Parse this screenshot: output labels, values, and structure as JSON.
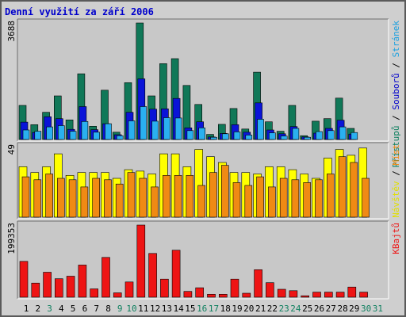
{
  "title": "Denní využití za září 2006",
  "chart_data": [
    {
      "type": "bar",
      "panel": "top",
      "max_label": "3688",
      "ymax": 3688,
      "categories": [
        "1",
        "2",
        "3",
        "4",
        "5",
        "6",
        "7",
        "8",
        "9",
        "10",
        "11",
        "12",
        "13",
        "14",
        "15",
        "16",
        "17",
        "18",
        "19",
        "20",
        "21",
        "22",
        "23",
        "24",
        "25",
        "26",
        "27",
        "28",
        "29",
        "30",
        "31"
      ],
      "series": [
        {
          "name": "Přístupů",
          "color": "#107858",
          "values": [
            1080,
            470,
            860,
            1380,
            620,
            2080,
            420,
            1560,
            230,
            1800,
            3688,
            1380,
            2400,
            2560,
            1710,
            1110,
            160,
            480,
            980,
            330,
            2130,
            560,
            260,
            1080,
            120,
            580,
            660,
            1310,
            350,
            0,
            0
          ]
        },
        {
          "name": "Souborů",
          "color": "#0a14d8",
          "values": [
            550,
            220,
            720,
            660,
            320,
            1040,
            310,
            500,
            150,
            860,
            1920,
            960,
            970,
            1300,
            370,
            560,
            80,
            190,
            470,
            230,
            1160,
            300,
            180,
            410,
            80,
            200,
            350,
            610,
            170,
            0,
            0
          ]
        },
        {
          "name": "Stránek",
          "color": "#2ab0f0",
          "values": [
            300,
            260,
            400,
            440,
            260,
            570,
            230,
            500,
            120,
            590,
            1040,
            580,
            690,
            680,
            280,
            370,
            70,
            180,
            240,
            140,
            640,
            210,
            110,
            350,
            70,
            250,
            280,
            400,
            220,
            0,
            0
          ]
        }
      ]
    },
    {
      "type": "bar",
      "panel": "middle",
      "max_label": "49",
      "ymax": 49,
      "categories": [
        "1",
        "2",
        "3",
        "4",
        "5",
        "6",
        "7",
        "8",
        "9",
        "10",
        "11",
        "12",
        "13",
        "14",
        "15",
        "16",
        "17",
        "18",
        "19",
        "20",
        "21",
        "22",
        "23",
        "24",
        "25",
        "26",
        "27",
        "28",
        "29",
        "30",
        "31"
      ],
      "series": [
        {
          "name": "Návštěv",
          "color": "#ffff00",
          "values": [
            35,
            31,
            35,
            44,
            29,
            31,
            31,
            31,
            27,
            33,
            32,
            30,
            44,
            44,
            35,
            47,
            42,
            38,
            31,
            31,
            30,
            35,
            35,
            33,
            30,
            27,
            41,
            47,
            43,
            48,
            0
          ]
        },
        {
          "name": "Míst",
          "color": "#f08a14",
          "values": [
            28,
            26,
            30,
            27,
            26,
            21,
            27,
            26,
            23,
            31,
            27,
            21,
            29,
            29,
            29,
            22,
            31,
            36,
            24,
            22,
            28,
            21,
            27,
            26,
            24,
            26,
            30,
            42,
            38,
            27,
            0
          ]
        }
      ]
    },
    {
      "type": "bar",
      "panel": "bottom",
      "max_label": "199353",
      "ymax": 199353,
      "categories": [
        "1",
        "2",
        "3",
        "4",
        "5",
        "6",
        "7",
        "8",
        "9",
        "10",
        "11",
        "12",
        "13",
        "14",
        "15",
        "16",
        "17",
        "18",
        "19",
        "20",
        "21",
        "22",
        "23",
        "24",
        "25",
        "26",
        "27",
        "28",
        "29",
        "30",
        "31"
      ],
      "series": [
        {
          "name": "KBajtů",
          "color": "#ee1414",
          "values": [
            99000,
            39000,
            69000,
            51000,
            58000,
            89000,
            23000,
            110000,
            12000,
            42000,
            199353,
            121000,
            50000,
            130000,
            16000,
            26000,
            8000,
            8000,
            50000,
            11000,
            76000,
            40000,
            22000,
            18000,
            4000,
            14000,
            14000,
            14000,
            28000,
            14000,
            0
          ]
        }
      ]
    }
  ],
  "x_labels": [
    "1",
    "2",
    "3",
    "4",
    "5",
    "6",
    "7",
    "8",
    "9",
    "10",
    "11",
    "12",
    "13",
    "14",
    "15",
    "16",
    "17",
    "18",
    "19",
    "20",
    "21",
    "22",
    "23",
    "24",
    "25",
    "26",
    "27",
    "28",
    "29",
    "30",
    "31"
  ],
  "x_label_colors": [
    "#000000",
    "#000000",
    "#108060",
    "#000000",
    "#000000",
    "#000000",
    "#000000",
    "#000000",
    "#108060",
    "#108060",
    "#000000",
    "#000000",
    "#000000",
    "#000000",
    "#000000",
    "#108060",
    "#108060",
    "#000000",
    "#000000",
    "#000000",
    "#000000",
    "#000000",
    "#108060",
    "#108060",
    "#000000",
    "#000000",
    "#000000",
    "#000000",
    "#000000",
    "#108060",
    "#108060"
  ],
  "right_legends": {
    "top": [
      {
        "text": "Přístupů",
        "color": "#108060"
      },
      {
        "text": " / ",
        "color": "#000000"
      },
      {
        "text": "Souborů",
        "color": "#0000cc"
      },
      {
        "text": " / ",
        "color": "#000000"
      },
      {
        "text": "Stránek",
        "color": "#1aa0e0"
      }
    ],
    "middle": [
      {
        "text": "Návštěv",
        "color": "#e0e000"
      },
      {
        "text": " / ",
        "color": "#000000"
      },
      {
        "text": "Míst",
        "color": "#f08a14"
      }
    ],
    "bottom": [
      {
        "text": "KBajtů",
        "color": "#ee1414"
      }
    ]
  }
}
